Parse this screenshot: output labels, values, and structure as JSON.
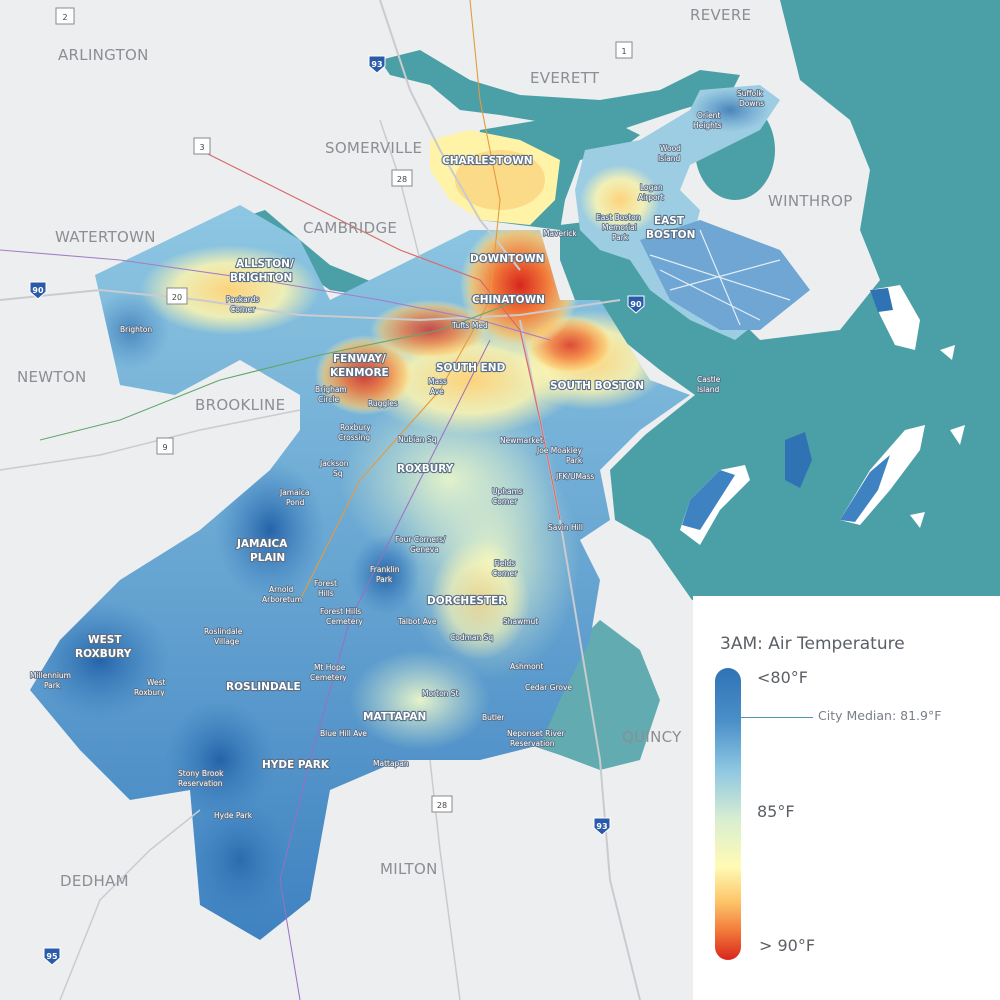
{
  "legend": {
    "title": "3AM: Air Temperature",
    "top_label": "<80°F",
    "mid_label": "85°F",
    "bottom_label": "> 90°F",
    "median_label": "City Median: 81.9°F"
  },
  "towns": {
    "revere": "REVERE",
    "arlington": "ARLINGTON",
    "everett": "EVERETT",
    "somerville": "SOMERVILLE",
    "winthrop": "WINTHROP",
    "watertown": "WATERTOWN",
    "cambridge": "CAMBRIDGE",
    "newton": "NEWTON",
    "brookline": "BROOKLINE",
    "quincy": "QUINCY",
    "milton": "MILTON",
    "dedham": "DEDHAM"
  },
  "neighborhoods": {
    "charlestown": "CHARLESTOWN",
    "east_boston_1": "EAST",
    "east_boston_2": "BOSTON",
    "allston_1": "ALLSTON/",
    "allston_2": "BRIGHTON",
    "downtown": "DOWNTOWN",
    "chinatown": "CHINATOWN",
    "fenway_1": "FENWAY/",
    "fenway_2": "KENMORE",
    "south_end": "SOUTH END",
    "south_boston": "SOUTH BOSTON",
    "roxbury": "ROXBURY",
    "jamaica_plain_1": "JAMAICA",
    "jamaica_plain_2": "PLAIN",
    "dorchester": "DORCHESTER",
    "west_roxbury_1": "WEST",
    "west_roxbury_2": "ROXBURY",
    "roslindale": "ROSLINDALE",
    "mattapan": "MATTAPAN",
    "hyde_park": "HYDE PARK"
  },
  "places": {
    "suffolk_downs_1": "Suffolk",
    "suffolk_downs_2": "Downs",
    "orient_heights_1": "Orient",
    "orient_heights_2": "Heights",
    "wood_island_1": "Wood",
    "wood_island_2": "Island",
    "logan_airport_1": "Logan",
    "logan_airport_2": "Airport",
    "ebmp_1": "East Boston",
    "ebmp_2": "Memorial",
    "ebmp_3": "Park",
    "maverick": "Maverick",
    "packards_1": "Packards",
    "packards_2": "Corner",
    "brighton": "Brighton",
    "tufts_med": "Tufts Med",
    "brigham_1": "Brigham",
    "brigham_2": "Circle",
    "ruggles": "Ruggles",
    "mass_ave_1": "Mass",
    "mass_ave_2": "Ave",
    "castle_1": "Castle",
    "castle_2": "Island",
    "roxbury_crossing_1": "Roxbury",
    "roxbury_crossing_2": "Crossing",
    "nubian": "Nubian Sq",
    "newmarket": "Newmarket",
    "moakley_1": "Joe Moakley",
    "moakley_2": "Park",
    "jfk": "JFK/UMass",
    "jackson_1": "Jackson",
    "jackson_2": "Sq",
    "uphams_1": "Uphams",
    "uphams_2": "Corner",
    "savin_hill": "Savin Hill",
    "jamaica_pond_1": "Jamaica",
    "jamaica_pond_2": "Pond",
    "four_corners_1": "Four Corners/",
    "four_corners_2": "Geneva",
    "franklin_park_1": "Franklin",
    "franklin_park_2": "Park",
    "fields_1": "Fields",
    "fields_2": "Corner",
    "arnold_1": "Arnold",
    "arnold_2": "Arboretum",
    "forest_hills_1": "Forest",
    "forest_hills_2": "Hills",
    "fh_cemetery_1": "Forest Hills",
    "fh_cemetery_2": "Cemetery",
    "talbot": "Talbot Ave",
    "shawmut": "Shawmut",
    "codman": "Codman Sq",
    "millennium_1": "Millennium",
    "millennium_2": "Park",
    "rosl_village_1": "Roslindale",
    "rosl_village_2": "Village",
    "mt_hope_1": "Mt Hope",
    "mt_hope_2": "Cemetery",
    "ashmont": "Ashmont",
    "west_roxbury_st_1": "West",
    "west_roxbury_st_2": "Roxbury",
    "morton": "Morton St",
    "cedar_grove": "Cedar Grove",
    "butler": "Butler",
    "blue_hill": "Blue Hill Ave",
    "neponset_1": "Neponset River",
    "neponset_2": "Reservation",
    "mattapan_st": "Mattapan",
    "stony_brook_1": "Stony Brook",
    "stony_brook_2": "Reservation",
    "hyde_park_st": "Hyde Park"
  },
  "shields": {
    "rt2": "2",
    "rt1": "1",
    "i93_n": "93",
    "rt3": "3",
    "rt28_n": "28",
    "rt20": "20",
    "i90_w": "90",
    "i90_e": "90",
    "rt9": "9",
    "rt28_s": "28",
    "i93_s": "93",
    "i95": "95"
  },
  "colors": {
    "land": "#eceef0",
    "water": "#4aa0a6",
    "cool": "#2f73b5",
    "hot": "#d7261d"
  }
}
